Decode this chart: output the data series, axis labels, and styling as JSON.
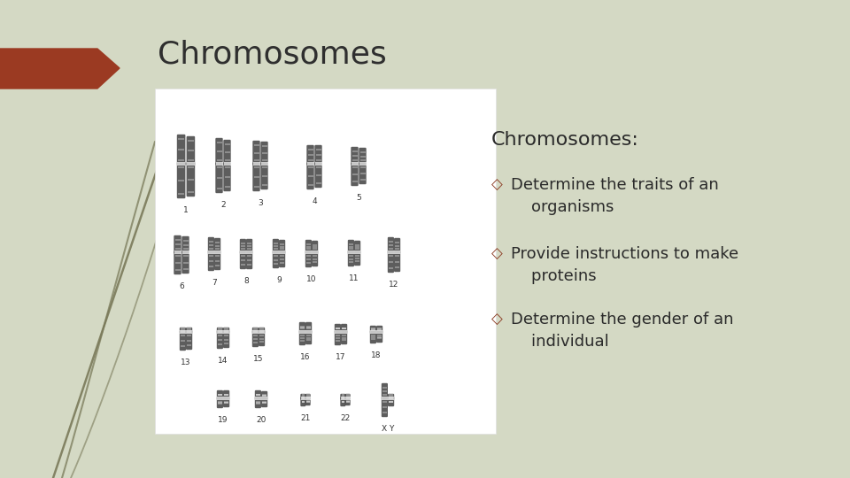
{
  "title": "Chromosomes",
  "title_color": "#2F2F2F",
  "title_fontsize": 26,
  "background_color": "#d4d9c4",
  "red_arrow_color": "#9B3A22",
  "subtitle": "Chromosomes:",
  "subtitle_fontsize": 15,
  "subtitle_color": "#2a2a2a",
  "bullet_color": "#8B3A22",
  "bullet_fontsize": 13,
  "bullet_text_color": "#2a2a2a",
  "bullets": [
    "Determine the traits of an\n    organisms",
    "Provide instructions to make\n    proteins",
    "Determine the gender of an\n    individual"
  ],
  "grass_color": "#7a7a5a",
  "slide_bg_top": "#d8ddc8",
  "slide_bg_bottom": "#c8cdb8"
}
